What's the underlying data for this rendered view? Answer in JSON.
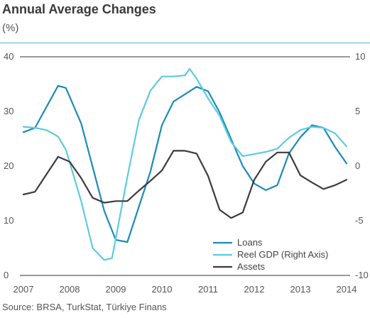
{
  "header": {
    "title": "Annual Average Changes",
    "unit": "(%)"
  },
  "footer": {
    "source": "Source: BRSA, TurkStat, Türkiye Finans"
  },
  "colors": {
    "loans": "#1a8bb8",
    "gdp": "#5ccbe0",
    "assets": "#3c3c3c",
    "rule": "#4fb7d3",
    "axis": "#333333"
  },
  "chart_data": {
    "type": "line",
    "title": "Annual Average Changes",
    "ylabel": "(%)",
    "x_ticks": [
      "2007",
      "2008",
      "2009",
      "2010",
      "2011",
      "2012",
      "2013",
      "2014"
    ],
    "x_range": [
      2007,
      2014
    ],
    "y_left": {
      "lim": [
        0,
        40
      ],
      "ticks": [
        "0",
        "10",
        "20",
        "30",
        "40"
      ]
    },
    "y_right": {
      "lim": [
        -10,
        10
      ],
      "ticks": [
        "-10",
        "-5",
        "0",
        "5",
        "10"
      ]
    },
    "series": [
      {
        "name": "Loans",
        "axis": "left",
        "color_key": "loans",
        "x": [
          2007.0,
          2007.25,
          2007.75,
          2007.92,
          2008.25,
          2008.75,
          2009.0,
          2009.25,
          2009.75,
          2010.0,
          2010.25,
          2010.75,
          2011.0,
          2011.25,
          2011.75,
          2012.0,
          2012.25,
          2012.5,
          2012.75,
          2013.0,
          2013.25,
          2013.5,
          2013.75,
          2014.0
        ],
        "y": [
          26.2,
          27.0,
          34.7,
          34.3,
          27.8,
          11.8,
          6.5,
          6.1,
          19.0,
          27.5,
          31.8,
          34.5,
          33.7,
          29.8,
          20.0,
          16.8,
          15.6,
          16.5,
          22.3,
          25.3,
          27.5,
          27.0,
          23.5,
          20.5
        ]
      },
      {
        "name": "Reel GDP (Right Axis)",
        "axis": "right",
        "color_key": "gdp",
        "x": [
          2007.0,
          2007.25,
          2007.5,
          2007.75,
          2007.92,
          2008.25,
          2008.5,
          2008.75,
          2008.92,
          2009.25,
          2009.5,
          2009.75,
          2010.0,
          2010.25,
          2010.5,
          2010.6,
          2010.75,
          2011.0,
          2011.25,
          2011.5,
          2011.75,
          2012.0,
          2012.25,
          2012.5,
          2012.75,
          2013.0,
          2013.25,
          2013.5,
          2013.75,
          2014.0
        ],
        "y": [
          3.6,
          3.5,
          3.3,
          2.7,
          1.5,
          -3.2,
          -7.5,
          -8.6,
          -8.4,
          -1.0,
          4.2,
          6.9,
          8.2,
          8.2,
          8.3,
          8.9,
          8.0,
          6.2,
          4.6,
          2.2,
          0.9,
          1.1,
          1.3,
          1.6,
          2.6,
          3.3,
          3.6,
          3.5,
          3.0,
          1.8
        ]
      },
      {
        "name": "Assets",
        "axis": "left",
        "color_key": "assets",
        "x": [
          2007.0,
          2007.25,
          2007.5,
          2007.75,
          2008.0,
          2008.25,
          2008.5,
          2008.75,
          2009.0,
          2009.25,
          2009.5,
          2009.75,
          2010.0,
          2010.25,
          2010.5,
          2010.75,
          2011.0,
          2011.25,
          2011.5,
          2011.75,
          2012.0,
          2012.25,
          2012.5,
          2012.75,
          2013.0,
          2013.25,
          2013.5,
          2013.75,
          2014.0
        ],
        "y": [
          14.8,
          15.3,
          18.5,
          21.7,
          20.8,
          17.8,
          14.2,
          13.3,
          13.6,
          13.6,
          15.5,
          17.3,
          19.2,
          22.8,
          22.8,
          22.3,
          18.2,
          12.0,
          10.5,
          11.5,
          17.5,
          20.8,
          22.5,
          22.5,
          18.3,
          17.0,
          15.8,
          16.5,
          17.5
        ]
      }
    ],
    "legend": {
      "position": "bottom-right",
      "entries": [
        "Loans",
        "Reel GDP (Right Axis)",
        "Assets"
      ]
    },
    "grid": "horizontal at top and bottom only"
  }
}
